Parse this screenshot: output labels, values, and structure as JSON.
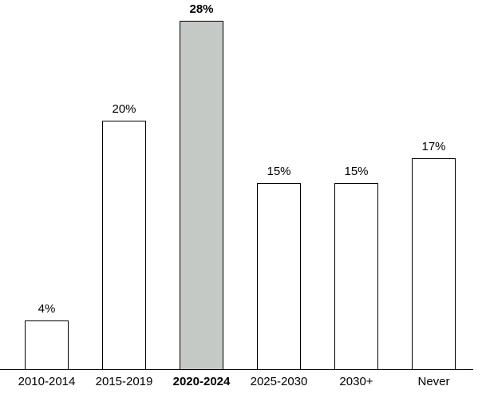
{
  "chart_data": {
    "type": "bar",
    "categories": [
      "2010-2014",
      "2015-2019",
      "2020-2024",
      "2025-2030",
      "2030+",
      "Never"
    ],
    "values": [
      4,
      20,
      28,
      15,
      15,
      17
    ],
    "value_labels": [
      "4%",
      "20%",
      "28%",
      "15%",
      "15%",
      "17%"
    ],
    "highlighted_index": 2,
    "highlighted_category": "2020-2024",
    "title": "",
    "xlabel": "",
    "ylabel": "",
    "ylim": [
      0,
      30
    ],
    "grid": false,
    "legend": "none",
    "colors": {
      "bar_fill_default": "#ffffff",
      "bar_fill_highlight": "#c4c9c6",
      "bar_border": "#000000",
      "axis_line": "#000000",
      "label_text": "#000000",
      "background": "#ffffff"
    }
  }
}
